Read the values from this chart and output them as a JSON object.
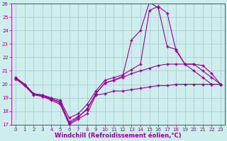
{
  "title": "",
  "xlabel": "Windchill (Refroidissement éolien,°C)",
  "ylabel": "",
  "xlim": [
    -0.5,
    23.5
  ],
  "ylim": [
    17,
    26
  ],
  "yticks": [
    17,
    18,
    19,
    20,
    21,
    22,
    23,
    24,
    25,
    26
  ],
  "xticks": [
    0,
    1,
    2,
    3,
    4,
    5,
    6,
    7,
    8,
    9,
    10,
    11,
    12,
    13,
    14,
    15,
    16,
    17,
    18,
    19,
    20,
    21,
    22,
    23
  ],
  "bg_color": "#cdeeed",
  "line_color": "#990099",
  "grid_color": "#aac4cc",
  "line1_x": [
    0,
    1,
    2,
    3,
    4,
    5,
    6,
    7,
    8,
    9,
    10,
    11,
    12,
    13,
    14,
    15,
    16,
    17,
    18,
    19,
    20,
    21,
    22,
    23
  ],
  "line1_y": [
    20.4,
    19.9,
    19.2,
    19.1,
    18.8,
    18.5,
    17.0,
    17.4,
    17.8,
    19.2,
    19.3,
    19.5,
    19.5,
    19.6,
    19.7,
    19.8,
    19.9,
    19.9,
    20.0,
    20.0,
    20.0,
    20.0,
    20.0,
    20.0
  ],
  "line2_x": [
    0,
    1,
    2,
    3,
    4,
    5,
    6,
    7,
    8,
    9,
    10,
    11,
    12,
    13,
    14,
    15,
    16,
    17,
    18,
    19,
    20,
    21,
    22,
    23
  ],
  "line2_y": [
    20.4,
    19.9,
    19.3,
    19.1,
    18.9,
    18.7,
    17.2,
    17.6,
    18.1,
    19.3,
    20.1,
    20.3,
    20.5,
    20.8,
    21.0,
    21.2,
    21.4,
    21.5,
    21.5,
    21.5,
    21.5,
    21.0,
    20.5,
    20.0
  ],
  "line3_x": [
    0,
    1,
    2,
    3,
    4,
    5,
    6,
    7,
    8,
    9,
    10,
    11,
    12,
    13,
    14,
    15,
    16,
    17,
    18,
    19,
    20,
    21,
    22,
    23
  ],
  "line3_y": [
    20.5,
    20.0,
    19.3,
    19.2,
    19.0,
    18.8,
    17.5,
    17.8,
    18.5,
    19.5,
    20.3,
    20.5,
    20.7,
    21.1,
    21.5,
    25.5,
    25.8,
    25.3,
    22.5,
    21.5,
    21.5,
    21.4,
    20.8,
    20.0
  ],
  "line4_x": [
    0,
    1,
    2,
    3,
    4,
    5,
    6,
    7,
    8,
    9,
    10,
    11,
    12,
    13,
    14,
    15,
    16,
    17,
    18,
    19,
    20,
    21,
    22,
    23
  ],
  "line4_y": [
    20.5,
    20.0,
    19.3,
    19.2,
    18.9,
    18.6,
    17.1,
    17.5,
    18.2,
    19.3,
    20.1,
    20.3,
    20.6,
    23.3,
    24.0,
    26.1,
    25.7,
    22.8,
    22.6,
    21.5,
    21.0,
    20.5,
    20.0,
    20.0
  ],
  "marker": "+",
  "markersize": 3.5,
  "linewidth": 0.8,
  "tick_fontsize": 5.0,
  "label_fontsize": 6.0
}
